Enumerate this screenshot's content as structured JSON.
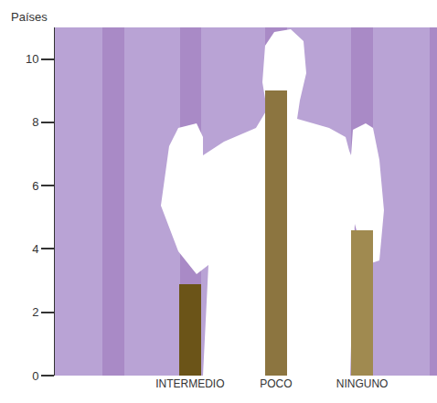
{
  "chart_data": {
    "type": "bar",
    "y_label": "Países",
    "categories": [
      "INTERMEDIO",
      "POCO",
      "NINGUNO"
    ],
    "values": [
      2.9,
      9,
      4.6
    ],
    "colors": [
      "#6b5418",
      "#8c7540",
      "#a08a50"
    ],
    "ylim": [
      0,
      11
    ],
    "yticks": [
      0,
      2,
      4,
      6,
      8,
      10
    ],
    "grid": false
  }
}
